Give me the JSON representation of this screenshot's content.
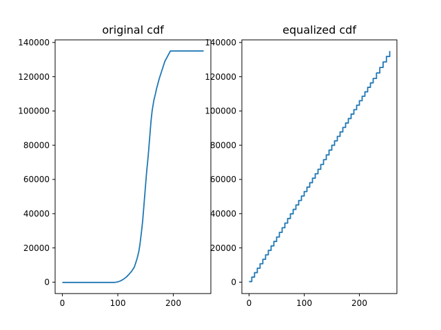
{
  "chart_data": [
    {
      "type": "line",
      "title": "original cdf",
      "xlabel": "",
      "ylabel": "",
      "xlim": [
        -13,
        268
      ],
      "ylim": [
        -6500,
        141500
      ],
      "xticks": [
        0,
        100,
        200
      ],
      "xtick_labels": [
        "0",
        "100",
        "200"
      ],
      "yticks": [
        0,
        20000,
        40000,
        60000,
        80000,
        100000,
        120000,
        140000
      ],
      "ytick_labels": [
        "0",
        "20000",
        "40000",
        "60000",
        "80000",
        "100000",
        "120000",
        "140000"
      ],
      "grid": false,
      "color": "#1f77b4",
      "series": [
        {
          "x": [
            0,
            50,
            95,
            100,
            105,
            110,
            115,
            120,
            125,
            130,
            135,
            138,
            140,
            143,
            145,
            148,
            150,
            152,
            155,
            158,
            160,
            162,
            165,
            168,
            170,
            175,
            180,
            185,
            190,
            195,
            200,
            203,
            205,
            210,
            220,
            230,
            240,
            255
          ],
          "y": [
            0,
            0,
            0,
            300,
            900,
            1800,
            3000,
            4600,
            6500,
            9000,
            14000,
            18000,
            22000,
            30000,
            36000,
            48000,
            56000,
            64000,
            74000,
            86000,
            94000,
            100000,
            106000,
            110000,
            113000,
            119000,
            124000,
            129000,
            132000,
            135000,
            135000,
            135000,
            135000,
            135000,
            135000,
            135000,
            135000,
            135000
          ]
        }
      ]
    },
    {
      "type": "line",
      "title": "equalized cdf",
      "xlabel": "",
      "ylabel": "",
      "xlim": [
        -13,
        268
      ],
      "ylim": [
        -6500,
        141500
      ],
      "xticks": [
        0,
        100,
        200
      ],
      "xtick_labels": [
        "0",
        "100",
        "200"
      ],
      "yticks": [
        0,
        20000,
        40000,
        60000,
        80000,
        100000,
        120000,
        140000
      ],
      "ytick_labels": [
        "0",
        "20000",
        "40000",
        "60000",
        "80000",
        "100000",
        "120000",
        "140000"
      ],
      "grid": false,
      "color": "#1f77b4",
      "series": [
        {
          "x": [
            0,
            25,
            50,
            75,
            100,
            125,
            150,
            175,
            200,
            225,
            255
          ],
          "y": [
            500,
            13500,
            26500,
            40000,
            53000,
            66000,
            80000,
            93000,
            106000,
            119000,
            135000
          ]
        }
      ]
    }
  ]
}
